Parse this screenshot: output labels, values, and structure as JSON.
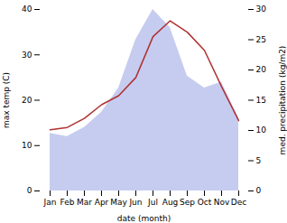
{
  "chart_data": {
    "type": "line",
    "categories": [
      "Jan",
      "Feb",
      "Mar",
      "Apr",
      "May",
      "Jun",
      "Jul",
      "Aug",
      "Sep",
      "Oct",
      "Nov",
      "Dec"
    ],
    "xlabel": "date (month)",
    "ylabel": "max temp (C)",
    "y2label": "med. precipitation (kg/m2)",
    "ylim": [
      0,
      40
    ],
    "yticks": [
      0,
      10,
      20,
      30,
      40
    ],
    "y2lim": [
      0,
      30
    ],
    "y2ticks": [
      0,
      5,
      10,
      15,
      20,
      25,
      30
    ],
    "series": [
      {
        "type": "area",
        "axis": "y2",
        "color": "#c5ccf0",
        "values": [
          9.5,
          9.0,
          10.5,
          13.0,
          17.0,
          25.0,
          30.0,
          27.0,
          19.0,
          17.0,
          18.0,
          12.0
        ]
      },
      {
        "type": "line",
        "color": "#b03030",
        "values": [
          13.5,
          14.0,
          16.0,
          19.0,
          21.0,
          25.0,
          34.0,
          37.5,
          35.0,
          31.0,
          23.0,
          15.5
        ]
      }
    ]
  }
}
